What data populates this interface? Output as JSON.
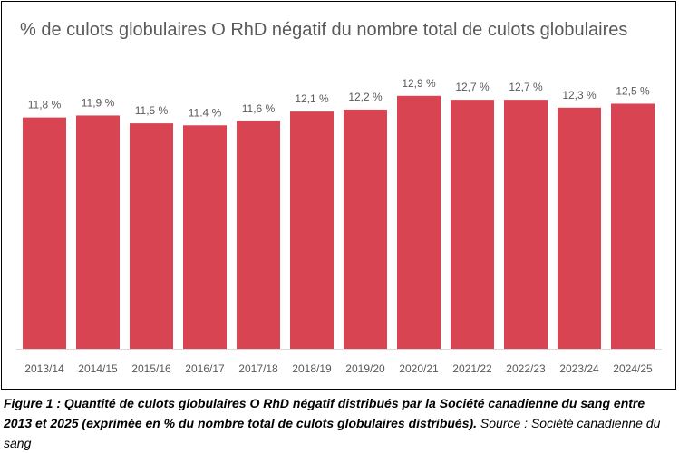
{
  "chart_data": {
    "type": "bar",
    "title": "% de culots globulaires O RhD négatif du nombre total de culots globulaires",
    "categories": [
      "2013/14",
      "2014/15",
      "2015/16",
      "2016/17",
      "2017/18",
      "2018/19",
      "2019/20",
      "2020/21",
      "2021/22",
      "2022/23",
      "2023/24",
      "2024/25"
    ],
    "values": [
      11.8,
      11.9,
      11.5,
      11.4,
      11.6,
      12.1,
      12.2,
      12.9,
      12.7,
      12.7,
      12.3,
      12.5
    ],
    "data_labels": [
      "11,8 %",
      "11,9 %",
      "11,5 %",
      "11.4 %",
      "11,6 %",
      "12,1 %",
      "12,2 %",
      "12,9 %",
      "12,7 %",
      "12,7 %",
      "12,3 %",
      "12,5 %"
    ],
    "xlabel": "",
    "ylabel": "",
    "ylim": [
      0,
      14
    ],
    "grid": false,
    "bar_color": "#d94452"
  },
  "caption": {
    "bold": "Figure 1 : Quantité de culots globulaires O RhD négatif distribués par la Société canadienne du sang entre 2013 et 2025 (exprimée en % du nombre total de culots globulaires distribués).",
    "source": " Source : Société canadienne du sang"
  }
}
